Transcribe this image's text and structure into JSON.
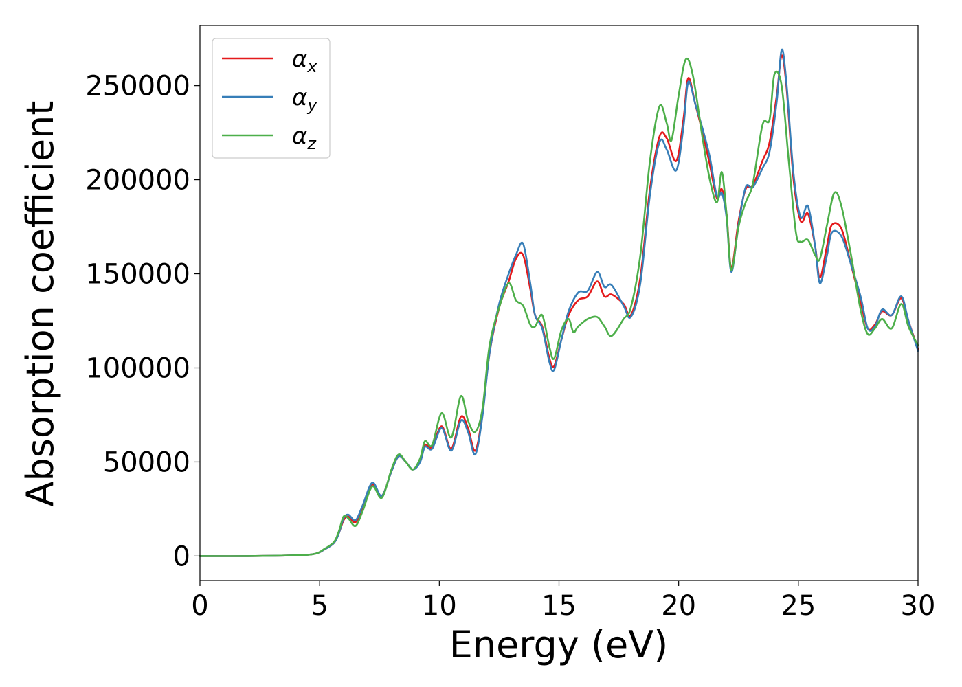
{
  "chart_data": {
    "type": "line",
    "xlabel": "Energy (eV)",
    "ylabel": "Absorption coefficient",
    "xlim": [
      0,
      30
    ],
    "ylim": [
      -13000,
      282000
    ],
    "xticks": [
      0,
      5,
      10,
      15,
      20,
      25,
      30
    ],
    "yticks": [
      0,
      50000,
      100000,
      150000,
      200000,
      250000
    ],
    "grid": false,
    "legend_position": "top-left",
    "series": [
      {
        "name": "α_x",
        "legend_symbol": "α",
        "legend_sub": "x",
        "color": "#e41a1c",
        "points": [
          [
            0,
            0
          ],
          [
            2,
            0
          ],
          [
            4,
            400
          ],
          [
            4.8,
            1200
          ],
          [
            5.2,
            3500
          ],
          [
            5.6,
            7000
          ],
          [
            5.8,
            12000
          ],
          [
            6.0,
            19000
          ],
          [
            6.2,
            21000
          ],
          [
            6.5,
            18000
          ],
          [
            6.8,
            26000
          ],
          [
            7.2,
            38000
          ],
          [
            7.6,
            32000
          ],
          [
            8.0,
            45000
          ],
          [
            8.3,
            53000
          ],
          [
            8.6,
            50000
          ],
          [
            8.9,
            46000
          ],
          [
            9.2,
            51000
          ],
          [
            9.4,
            59000
          ],
          [
            9.7,
            58000
          ],
          [
            10.1,
            69000
          ],
          [
            10.5,
            57000
          ],
          [
            10.9,
            74000
          ],
          [
            11.2,
            68000
          ],
          [
            11.5,
            56000
          ],
          [
            11.8,
            75000
          ],
          [
            12.1,
            108000
          ],
          [
            12.5,
            132000
          ],
          [
            12.9,
            146000
          ],
          [
            13.2,
            158000
          ],
          [
            13.5,
            160000
          ],
          [
            13.8,
            142000
          ],
          [
            14.0,
            128000
          ],
          [
            14.3,
            122000
          ],
          [
            14.6,
            105000
          ],
          [
            14.8,
            101000
          ],
          [
            15.1,
            115000
          ],
          [
            15.4,
            128000
          ],
          [
            15.8,
            136000
          ],
          [
            16.2,
            138000
          ],
          [
            16.6,
            146000
          ],
          [
            16.9,
            138000
          ],
          [
            17.2,
            139000
          ],
          [
            17.7,
            134000
          ],
          [
            18.0,
            128000
          ],
          [
            18.4,
            148000
          ],
          [
            18.8,
            195000
          ],
          [
            19.2,
            223000
          ],
          [
            19.5,
            222000
          ],
          [
            19.9,
            210000
          ],
          [
            20.2,
            232000
          ],
          [
            20.4,
            254000
          ],
          [
            20.7,
            240000
          ],
          [
            21.0,
            225000
          ],
          [
            21.3,
            208000
          ],
          [
            21.6,
            190000
          ],
          [
            21.8,
            195000
          ],
          [
            22.0,
            182000
          ],
          [
            22.2,
            153000
          ],
          [
            22.5,
            178000
          ],
          [
            22.8,
            195000
          ],
          [
            23.1,
            197000
          ],
          [
            23.5,
            210000
          ],
          [
            23.8,
            220000
          ],
          [
            24.1,
            245000
          ],
          [
            24.3,
            266000
          ],
          [
            24.5,
            250000
          ],
          [
            24.8,
            200000
          ],
          [
            25.1,
            178000
          ],
          [
            25.4,
            182000
          ],
          [
            25.7,
            165000
          ],
          [
            25.9,
            148000
          ],
          [
            26.2,
            165000
          ],
          [
            26.4,
            176000
          ],
          [
            26.8,
            174000
          ],
          [
            27.2,
            155000
          ],
          [
            27.6,
            135000
          ],
          [
            27.9,
            121000
          ],
          [
            28.2,
            123000
          ],
          [
            28.5,
            130000
          ],
          [
            28.9,
            128000
          ],
          [
            29.3,
            137000
          ],
          [
            29.6,
            125000
          ],
          [
            30.0,
            110000
          ]
        ]
      },
      {
        "name": "α_y",
        "legend_symbol": "α",
        "legend_sub": "y",
        "color": "#377eb8",
        "points": [
          [
            0,
            0
          ],
          [
            2,
            0
          ],
          [
            4,
            400
          ],
          [
            4.8,
            1200
          ],
          [
            5.2,
            3500
          ],
          [
            5.6,
            7000
          ],
          [
            5.8,
            12000
          ],
          [
            6.0,
            20000
          ],
          [
            6.2,
            22000
          ],
          [
            6.5,
            19000
          ],
          [
            6.8,
            27000
          ],
          [
            7.2,
            39000
          ],
          [
            7.6,
            32000
          ],
          [
            8.0,
            45000
          ],
          [
            8.3,
            53000
          ],
          [
            8.6,
            50000
          ],
          [
            8.9,
            46000
          ],
          [
            9.2,
            50000
          ],
          [
            9.4,
            58000
          ],
          [
            9.7,
            57000
          ],
          [
            10.1,
            68000
          ],
          [
            10.5,
            56000
          ],
          [
            10.9,
            72000
          ],
          [
            11.2,
            66000
          ],
          [
            11.5,
            54000
          ],
          [
            11.8,
            74000
          ],
          [
            12.1,
            108000
          ],
          [
            12.5,
            134000
          ],
          [
            12.9,
            150000
          ],
          [
            13.2,
            160000
          ],
          [
            13.5,
            166000
          ],
          [
            13.8,
            145000
          ],
          [
            14.0,
            128000
          ],
          [
            14.3,
            121000
          ],
          [
            14.6,
            103000
          ],
          [
            14.8,
            99000
          ],
          [
            15.1,
            115000
          ],
          [
            15.4,
            130000
          ],
          [
            15.8,
            140000
          ],
          [
            16.2,
            141000
          ],
          [
            16.6,
            151000
          ],
          [
            16.9,
            143000
          ],
          [
            17.2,
            144000
          ],
          [
            17.7,
            133000
          ],
          [
            18.0,
            127000
          ],
          [
            18.4,
            145000
          ],
          [
            18.8,
            192000
          ],
          [
            19.2,
            220000
          ],
          [
            19.5,
            216000
          ],
          [
            19.9,
            205000
          ],
          [
            20.2,
            228000
          ],
          [
            20.4,
            252000
          ],
          [
            20.7,
            240000
          ],
          [
            21.0,
            227000
          ],
          [
            21.3,
            212000
          ],
          [
            21.6,
            191000
          ],
          [
            21.8,
            193000
          ],
          [
            22.0,
            180000
          ],
          [
            22.2,
            151000
          ],
          [
            22.5,
            176000
          ],
          [
            22.8,
            196000
          ],
          [
            23.1,
            196000
          ],
          [
            23.5,
            206000
          ],
          [
            23.8,
            215000
          ],
          [
            24.1,
            242000
          ],
          [
            24.3,
            269000
          ],
          [
            24.5,
            252000
          ],
          [
            24.8,
            203000
          ],
          [
            25.1,
            180000
          ],
          [
            25.4,
            186000
          ],
          [
            25.7,
            165000
          ],
          [
            25.9,
            145000
          ],
          [
            26.2,
            160000
          ],
          [
            26.4,
            172000
          ],
          [
            26.8,
            170000
          ],
          [
            27.2,
            155000
          ],
          [
            27.6,
            138000
          ],
          [
            27.9,
            121000
          ],
          [
            28.2,
            122000
          ],
          [
            28.5,
            131000
          ],
          [
            28.9,
            128000
          ],
          [
            29.3,
            138000
          ],
          [
            29.6,
            125000
          ],
          [
            30.0,
            109000
          ]
        ]
      },
      {
        "name": "α_z",
        "legend_symbol": "α",
        "legend_sub": "z",
        "color": "#4daf4a",
        "points": [
          [
            0,
            0
          ],
          [
            2,
            0
          ],
          [
            4,
            400
          ],
          [
            4.8,
            1200
          ],
          [
            5.2,
            3800
          ],
          [
            5.6,
            7500
          ],
          [
            5.8,
            13000
          ],
          [
            6.0,
            21000
          ],
          [
            6.2,
            20000
          ],
          [
            6.5,
            16000
          ],
          [
            6.8,
            24000
          ],
          [
            7.2,
            37000
          ],
          [
            7.6,
            31000
          ],
          [
            8.0,
            46000
          ],
          [
            8.3,
            54000
          ],
          [
            8.6,
            50000
          ],
          [
            8.9,
            46000
          ],
          [
            9.2,
            52000
          ],
          [
            9.4,
            61000
          ],
          [
            9.7,
            59000
          ],
          [
            10.1,
            76000
          ],
          [
            10.5,
            63000
          ],
          [
            10.9,
            85000
          ],
          [
            11.2,
            72000
          ],
          [
            11.5,
            66000
          ],
          [
            11.8,
            78000
          ],
          [
            12.1,
            112000
          ],
          [
            12.5,
            132000
          ],
          [
            12.9,
            145000
          ],
          [
            13.2,
            136000
          ],
          [
            13.5,
            133000
          ],
          [
            13.8,
            123000
          ],
          [
            14.0,
            122000
          ],
          [
            14.3,
            128000
          ],
          [
            14.6,
            111000
          ],
          [
            14.8,
            105000
          ],
          [
            15.1,
            120000
          ],
          [
            15.4,
            126000
          ],
          [
            15.6,
            119000
          ],
          [
            15.8,
            122000
          ],
          [
            16.2,
            126000
          ],
          [
            16.6,
            127000
          ],
          [
            16.9,
            122000
          ],
          [
            17.2,
            117000
          ],
          [
            17.7,
            126000
          ],
          [
            18.0,
            132000
          ],
          [
            18.4,
            160000
          ],
          [
            18.8,
            210000
          ],
          [
            19.2,
            239000
          ],
          [
            19.5,
            230000
          ],
          [
            19.7,
            221000
          ],
          [
            20.0,
            245000
          ],
          [
            20.3,
            264000
          ],
          [
            20.6,
            255000
          ],
          [
            21.0,
            222000
          ],
          [
            21.3,
            200000
          ],
          [
            21.6,
            188000
          ],
          [
            21.8,
            204000
          ],
          [
            22.0,
            182000
          ],
          [
            22.2,
            152000
          ],
          [
            22.5,
            175000
          ],
          [
            22.8,
            188000
          ],
          [
            23.1,
            198000
          ],
          [
            23.5,
            229000
          ],
          [
            23.8,
            232000
          ],
          [
            24.0,
            256000
          ],
          [
            24.3,
            250000
          ],
          [
            24.6,
            210000
          ],
          [
            24.9,
            172000
          ],
          [
            25.1,
            167000
          ],
          [
            25.4,
            168000
          ],
          [
            25.7,
            160000
          ],
          [
            25.9,
            158000
          ],
          [
            26.2,
            176000
          ],
          [
            26.5,
            193000
          ],
          [
            26.8,
            186000
          ],
          [
            27.2,
            160000
          ],
          [
            27.6,
            131000
          ],
          [
            27.9,
            118000
          ],
          [
            28.2,
            121000
          ],
          [
            28.5,
            126000
          ],
          [
            28.9,
            121000
          ],
          [
            29.3,
            134000
          ],
          [
            29.6,
            122000
          ],
          [
            30.0,
            112000
          ]
        ]
      }
    ]
  }
}
